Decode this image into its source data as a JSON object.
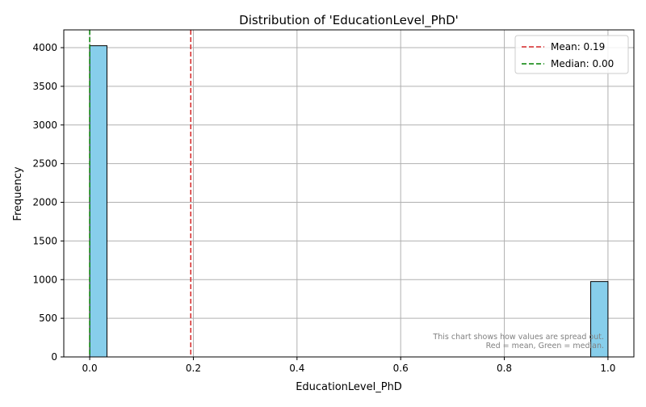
{
  "chart_data": {
    "type": "bar",
    "title": "Distribution of 'EducationLevel_PhD'",
    "xlabel": "EducationLevel_PhD",
    "ylabel": "Frequency",
    "xlim": [
      -0.05,
      1.05
    ],
    "ylim": [
      0,
      4230
    ],
    "xticks": [
      0.0,
      0.2,
      0.4,
      0.6,
      0.8,
      1.0
    ],
    "xtick_labels": [
      "0.0",
      "0.2",
      "0.4",
      "0.6",
      "0.8",
      "1.0"
    ],
    "yticks": [
      0,
      500,
      1000,
      1500,
      2000,
      2500,
      3000,
      3500,
      4000
    ],
    "ytick_labels": [
      "0",
      "500",
      "1000",
      "1500",
      "2000",
      "2500",
      "3000",
      "3500",
      "4000"
    ],
    "grid": true,
    "bins": [
      {
        "x0": 0.0,
        "x1": 0.0333,
        "value": 4025
      },
      {
        "x0": 0.9667,
        "x1": 1.0,
        "value": 975
      }
    ],
    "bar_color": "#87ceeb",
    "bar_edge_color": "#000000",
    "reference_lines": [
      {
        "label": "Mean: 0.19",
        "value": 0.195,
        "color": "#d62728"
      },
      {
        "label": "Median: 0.00",
        "value": 0.0,
        "color": "#008000"
      }
    ],
    "legend_position": "top-right",
    "annotation": {
      "line1": "This chart shows how values are spread out.",
      "line2": "Red = mean, Green = median."
    }
  }
}
